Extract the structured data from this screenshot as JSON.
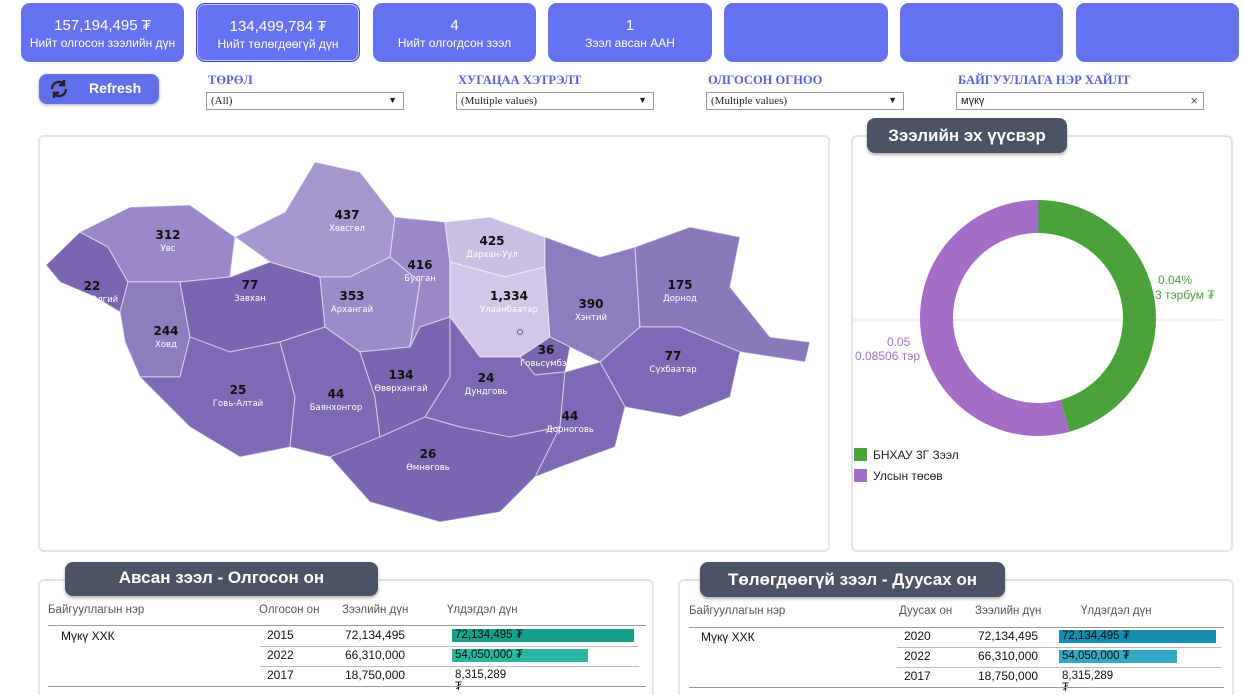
{
  "kpis": [
    {
      "value": "157,194,495 ₮",
      "label": "Нийт олгосон зээлийн дүн"
    },
    {
      "value": "134,499,784 ₮",
      "label": "Нийт төлөгдөөгүй дүн"
    },
    {
      "value": "4",
      "label": "Нийт олгогдсон зээл"
    },
    {
      "value": "1",
      "label": "Зээл авсан ААН"
    },
    {
      "value": "",
      "label": ""
    },
    {
      "value": "",
      "label": ""
    },
    {
      "value": "",
      "label": ""
    }
  ],
  "refresh_label": "Refresh",
  "filters": [
    {
      "label": "ТӨРӨЛ",
      "value": "(All)"
    },
    {
      "label": "ХУГАЦАА ХЭТРЭЛТ",
      "value": "(Multiple values)"
    },
    {
      "label": "ОЛГОСОН ОГНОО",
      "value": "(Multiple values)"
    },
    {
      "label": "БАЙГУУЛЛАГА НЭР ХАЙЛТ",
      "value": "мүкү"
    }
  ],
  "map": {
    "regions": [
      {
        "name": "Баян-Өлгий",
        "value": "22"
      },
      {
        "name": "Увс",
        "value": "312"
      },
      {
        "name": "Ховд",
        "value": "244"
      },
      {
        "name": "Завхан",
        "value": "77"
      },
      {
        "name": "Хөвсгөл",
        "value": "437"
      },
      {
        "name": "Архангай",
        "value": "353"
      },
      {
        "name": "Булган",
        "value": "416"
      },
      {
        "name": "Дархан-Уул",
        "value": "425"
      },
      {
        "name": "Улаанбаатар",
        "value": "1,334"
      },
      {
        "name": "Хэнтий",
        "value": "390"
      },
      {
        "name": "Дорнод",
        "value": "175"
      },
      {
        "name": "Говь-Алтай",
        "value": "25"
      },
      {
        "name": "Баянхонгор",
        "value": "44"
      },
      {
        "name": "Өвөрхангай",
        "value": "134"
      },
      {
        "name": "Говьсүмбэр",
        "value": "36"
      },
      {
        "name": "Дундговь",
        "value": "24"
      },
      {
        "name": "Сүхбаатар",
        "value": "77"
      },
      {
        "name": "Дорноговь",
        "value": "44"
      },
      {
        "name": "Өмнөговь",
        "value": "26"
      }
    ]
  },
  "source_panel": {
    "title": "Зээлийн эх үүсвэр",
    "label_right_pct": "0.04%",
    "label_right_val": "3 тэрбум ₮",
    "label_left_pct": "0.05",
    "label_left_val": "0.08506 тэр",
    "legend": [
      {
        "label": "БНХАУ 3Г Зээл",
        "color": "#4aa23b"
      },
      {
        "label": "Улсын төсөв",
        "color": "#a46ec6"
      }
    ]
  },
  "chart_data": {
    "type": "pie",
    "categories": [
      "БНХАУ 3Г Зээл",
      "Улсын төсөв"
    ],
    "values": [
      45.7,
      54.3
    ],
    "donut": true,
    "legend_position": "bottom-left"
  },
  "loans_by_year": {
    "title": "Авсан зээл - Олгосон он",
    "headers": [
      "Байгууллагын нэр",
      "Олгосон он",
      "Зээлийн дүн",
      "Үлдэгдэл дүн"
    ],
    "org": "Мүкү ХХК",
    "rows": [
      {
        "year": "2015",
        "amount": "72,134,495",
        "balance": "72,134,495 ₮",
        "fill": 1.0
      },
      {
        "year": "2022",
        "amount": "66,310,000",
        "balance": "54,050,000 ₮",
        "fill": 0.749
      },
      {
        "year": "2017",
        "amount": "18,750,000",
        "balance": "8,315,289 ₮",
        "fill": 0.0
      }
    ]
  },
  "unpaid_by_end": {
    "title": "Төлөгдөөгүй зээл - Дуусах он",
    "headers": [
      "Байгууллагын нэр",
      "Дуусах он",
      "Зээлийн дүн",
      "Үлдэгдэл дүн"
    ],
    "org": "Мүкү ХХК",
    "rows": [
      {
        "year": "2020",
        "amount": "72,134,495",
        "balance": "72,134,495 ₮",
        "fill": 1.0
      },
      {
        "year": "2022",
        "amount": "66,310,000",
        "balance": "54,050,000 ₮",
        "fill": 0.749
      },
      {
        "year": "2017",
        "amount": "18,750,000",
        "balance": "8,315,289 ₮",
        "fill": 0.0
      }
    ]
  }
}
